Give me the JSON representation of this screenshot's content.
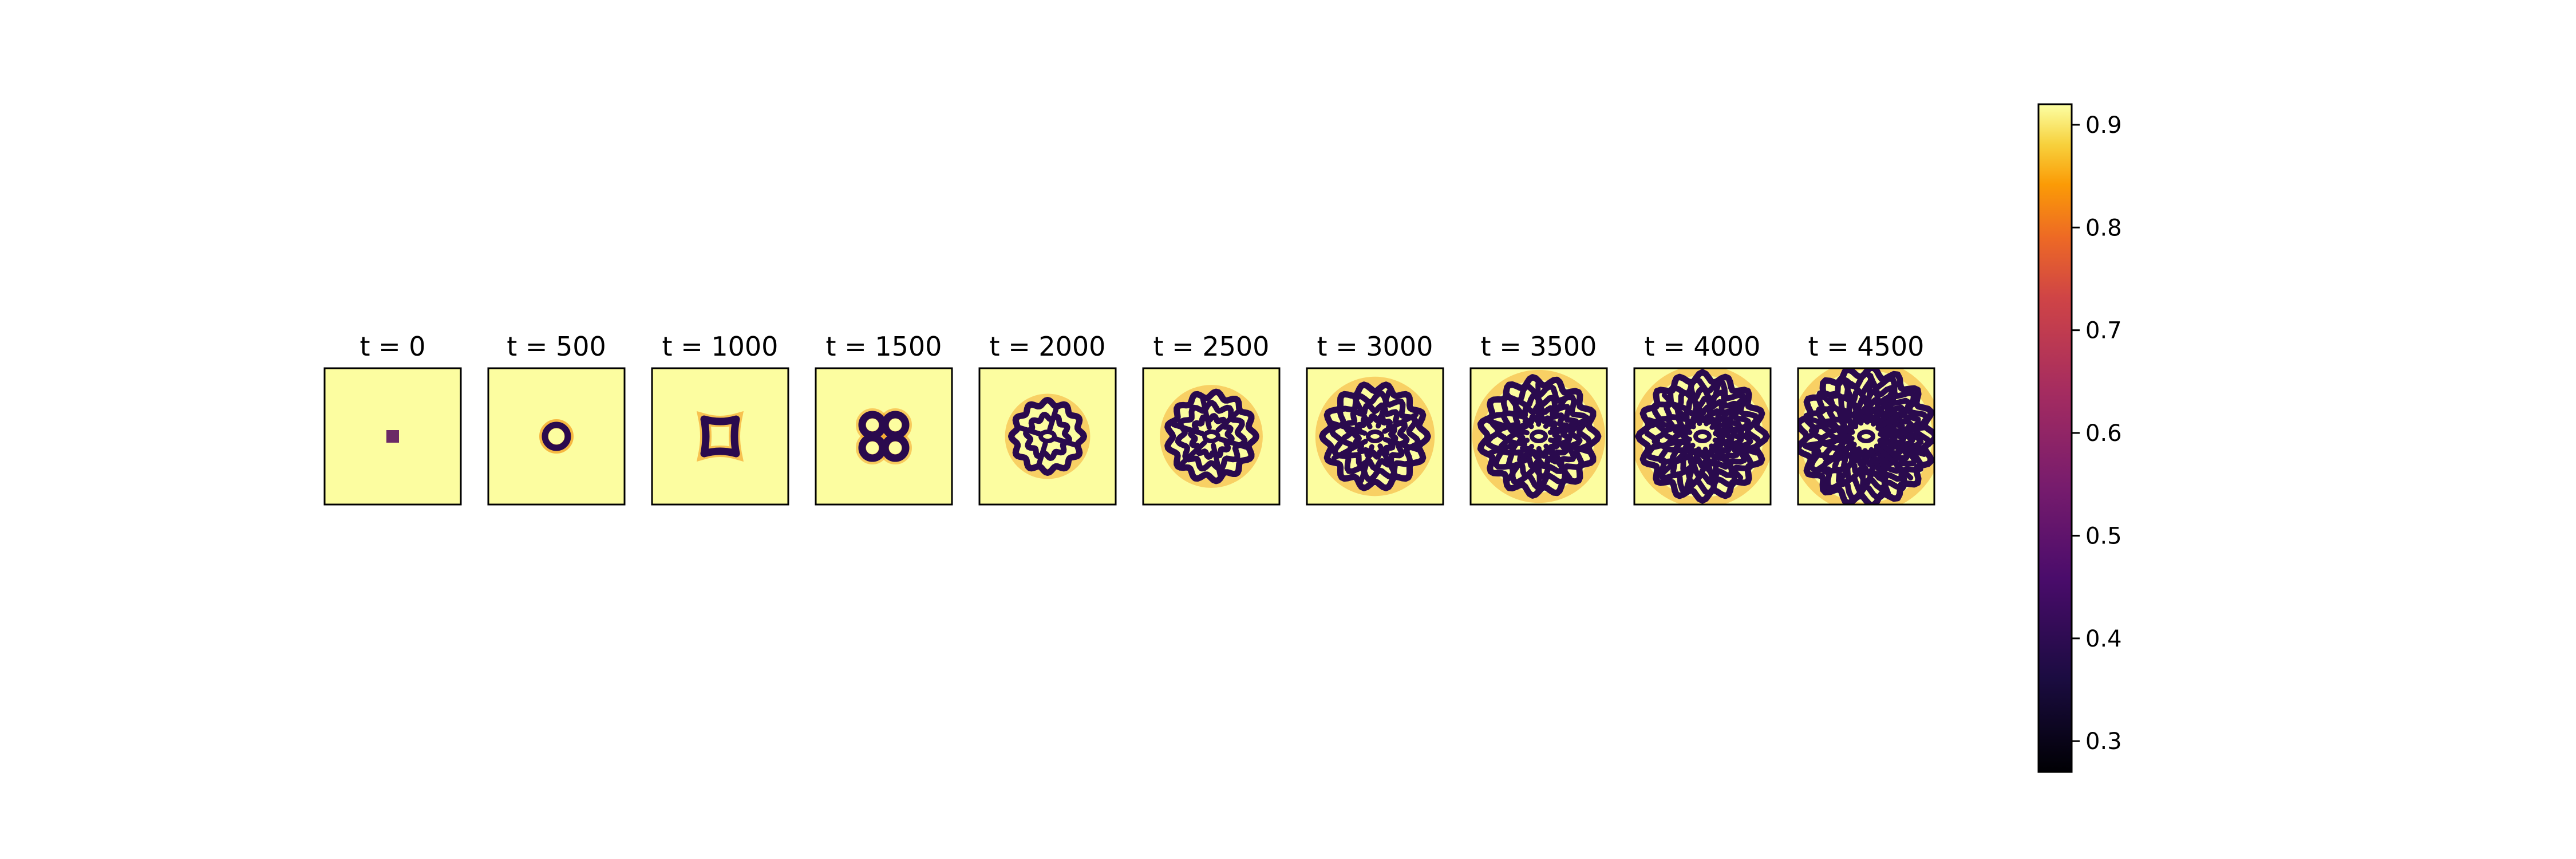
{
  "chart_data": {
    "type": "heatmap",
    "description_free": true,
    "panels": [
      {
        "t": 0,
        "title": "t = 0"
      },
      {
        "t": 500,
        "title": "t = 500"
      },
      {
        "t": 1000,
        "title": "t = 1000"
      },
      {
        "t": 1500,
        "title": "t = 1500"
      },
      {
        "t": 2000,
        "title": "t = 2000"
      },
      {
        "t": 2500,
        "title": "t = 2500"
      },
      {
        "t": 3000,
        "title": "t = 3000"
      },
      {
        "t": 3500,
        "title": "t = 3500"
      },
      {
        "t": 4000,
        "title": "t = 4000"
      },
      {
        "t": 4500,
        "title": "t = 4500"
      }
    ],
    "colorbar": {
      "colormap": "inferno",
      "vmin": 0.27,
      "vmax": 0.92,
      "ticks": [
        0.3,
        0.4,
        0.5,
        0.6,
        0.7,
        0.8,
        0.9
      ],
      "tick_labels": [
        "0.3",
        "0.4",
        "0.5",
        "0.6",
        "0.7",
        "0.8",
        "0.9"
      ]
    },
    "axes_visible": false,
    "grid": false
  }
}
